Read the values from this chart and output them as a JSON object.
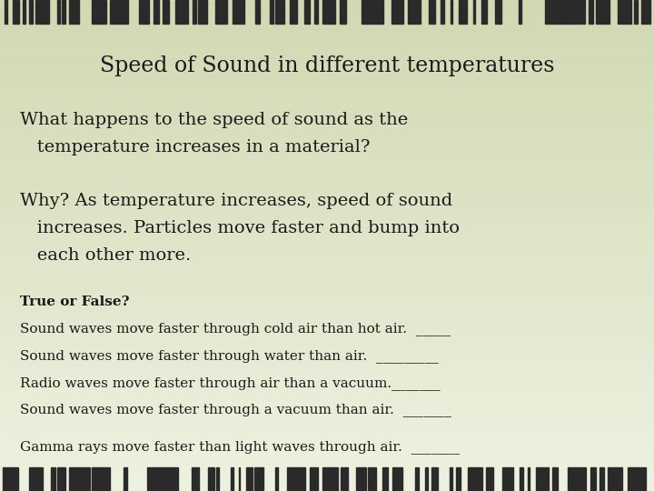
{
  "title": "Speed of Sound in different temperatures",
  "bg_color": "#d4d9b8",
  "title_fontsize": 17,
  "body_fontsize": 14,
  "small_fontsize": 11,
  "title_font": "DejaVu Serif",
  "body_font": "DejaVu Serif",
  "text_color": "#1a1a1a",
  "q1_line1": "What happens to the speed of sound as the",
  "q1_line2": "   temperature increases in a material?",
  "q2_line1": "Why? As temperature increases, speed of sound",
  "q2_line2": "   increases. Particles move faster and bump into",
  "q2_line3": "   each other more.",
  "tf_header": "True or False?",
  "tf1": "Sound waves move faster through cold air than hot air.  _____",
  "tf2": "Sound waves move faster through water than air.  _________",
  "tf3": "Radio waves move faster through air than a vacuum._______",
  "tf4": "Sound waves move faster through a vacuum than air.  _______",
  "gamma": "Gamma rays move faster than light waves through air.  _______"
}
